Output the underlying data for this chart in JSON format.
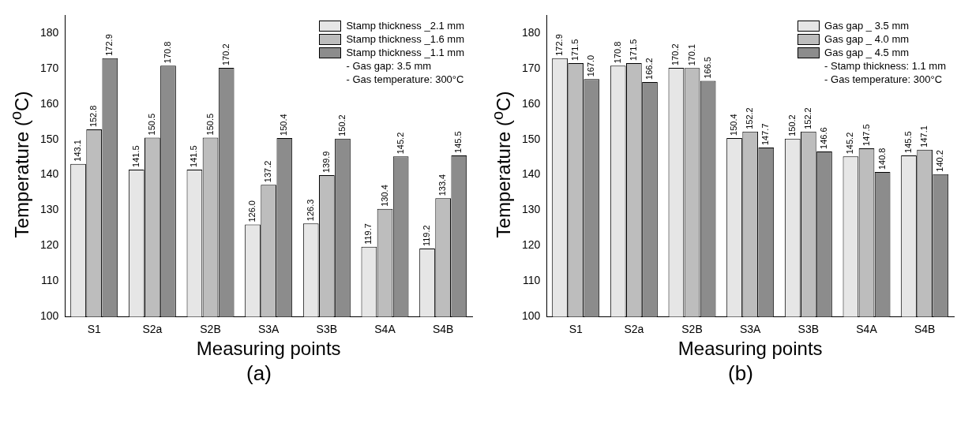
{
  "chart_data": [
    {
      "type": "bar",
      "xlabel": "Measuring points",
      "ylabel": "Temperature ($^{o}$C)",
      "categories": [
        "S1",
        "S2a",
        "S2B",
        "S3A",
        "S3B",
        "S4A",
        "S4B"
      ],
      "ylim": [
        100,
        185
      ],
      "yticks": [
        100,
        110,
        120,
        130,
        140,
        150,
        160,
        170,
        180
      ],
      "grid": false,
      "legend": "top right",
      "series": [
        {
          "name": "Stamp thickness _2.1 mm",
          "color": "#e6e6e6",
          "values": [
            143.1,
            141.5,
            141.5,
            126.0,
            126.3,
            119.7,
            119.2
          ],
          "value_labels": [
            "143.1",
            "141.5",
            "141.5",
            "126.0",
            "126.3",
            "119.7",
            "119.2"
          ]
        },
        {
          "name": "Stamp thickness _1.6 mm",
          "color": "#bdbdbd",
          "values": [
            152.8,
            150.5,
            150.5,
            137.2,
            139.9,
            130.4,
            133.4
          ],
          "value_labels": [
            "152.8",
            "150.5",
            "150.5",
            "137.2",
            "139.9",
            "130.4",
            "133.4"
          ]
        },
        {
          "name": "Stamp thickness _1.1 mm",
          "color": "#8c8c8c",
          "values": [
            172.9,
            170.8,
            170.2,
            150.4,
            150.2,
            145.2,
            145.5
          ],
          "value_labels": [
            "172.9",
            "170.8",
            "170.2",
            "150.4",
            "150.2",
            "145.2",
            "145.5"
          ]
        }
      ],
      "annotations": [
        "- Gas gap: 3.5 mm",
        "- Gas temperature: 300°C",
        "(a)"
      ]
    },
    {
      "type": "bar",
      "xlabel": "Measuring points",
      "ylabel": "Temperature ($^{o}$C)",
      "categories": [
        "S1",
        "S2a",
        "S2B",
        "S3A",
        "S3B",
        "S4A",
        "S4B"
      ],
      "ylim": [
        100,
        185
      ],
      "yticks": [
        100,
        110,
        120,
        130,
        140,
        150,
        160,
        170,
        180
      ],
      "grid": false,
      "legend": "top right",
      "series": [
        {
          "name": "Gas gap _ 3.5 mm",
          "color": "#e6e6e6",
          "values": [
            172.9,
            170.8,
            170.2,
            150.4,
            150.2,
            145.2,
            145.5
          ],
          "value_labels": [
            "172.9",
            "170.8",
            "170.2",
            "150.4",
            "150.2",
            "145.2",
            "145.5"
          ]
        },
        {
          "name": "Gas gap _ 4.0 mm",
          "color": "#bdbdbd",
          "values": [
            171.5,
            171.5,
            170.1,
            152.2,
            152.2,
            147.5,
            147.1
          ],
          "value_labels": [
            "171.5",
            "171.5",
            "170.1",
            "152.2",
            "152.2",
            "147.5",
            "147.1"
          ]
        },
        {
          "name": "Gas gap _ 4.5 mm",
          "color": "#8c8c8c",
          "values": [
            167.0,
            166.2,
            166.5,
            147.7,
            146.6,
            140.8,
            140.2
          ],
          "value_labels": [
            "167.0",
            "166.2",
            "166.5",
            "147.7",
            "146.6",
            "140.8",
            "140.2"
          ]
        }
      ],
      "annotations": [
        "- Stamp thickness: 1.1 mm",
        "- Gas temperature: 300°C",
        "(b)"
      ]
    }
  ]
}
